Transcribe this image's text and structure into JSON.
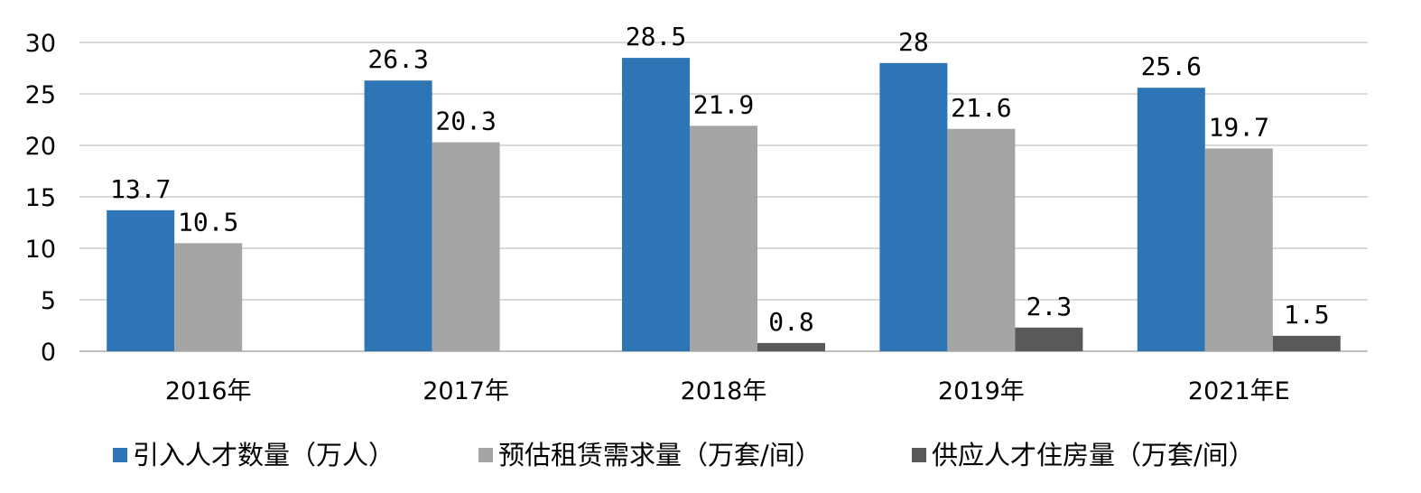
{
  "chart_data": {
    "type": "bar",
    "title": "",
    "xlabel": "",
    "ylabel": "",
    "ylim": [
      0,
      30
    ],
    "yticks": [
      0,
      5,
      10,
      15,
      20,
      25,
      30
    ],
    "grid": true,
    "legend_position": "bottom",
    "categories": [
      "2016年",
      "2017年",
      "2018年",
      "2019年",
      "2021年E"
    ],
    "series": [
      {
        "name": "引入人才数量（万人）",
        "color": "#2e75b6",
        "values": [
          13.7,
          26.3,
          28.5,
          28,
          25.6
        ],
        "labels": [
          "13.7",
          "26.3",
          "28.5",
          "28",
          "25.6"
        ]
      },
      {
        "name": "预估租赁需求量（万套/间）",
        "color": "#a5a5a5",
        "values": [
          10.5,
          20.3,
          21.9,
          21.6,
          19.7
        ],
        "labels": [
          "10.5",
          "20.3",
          "21.9",
          "21.6",
          "19.7"
        ]
      },
      {
        "name": "供应人才住房量（万套/间）",
        "color": "#595959",
        "values": [
          null,
          null,
          0.8,
          2.3,
          1.5
        ],
        "labels": [
          null,
          null,
          "0.8",
          "2.3",
          "1.5"
        ]
      }
    ]
  }
}
